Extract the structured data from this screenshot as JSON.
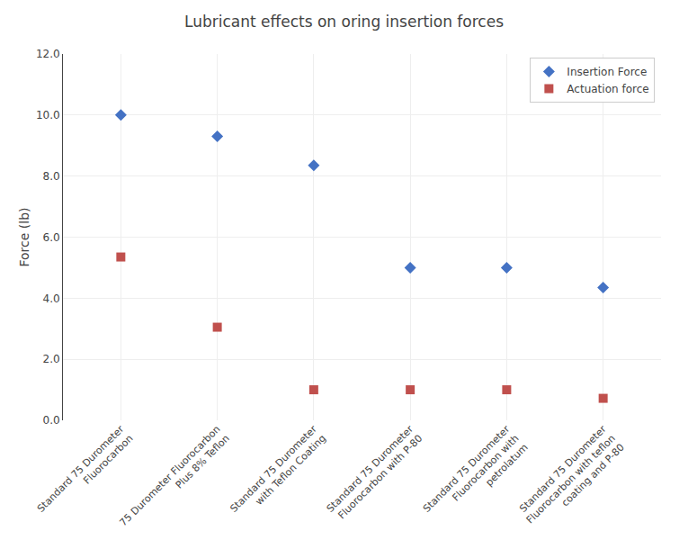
{
  "chart_data": {
    "type": "scatter",
    "title": "Lubricant effects on oring insertion forces",
    "ylabel": "Force (lb)",
    "categories": [
      "Standard 75 Durometer\nFluorocarbon",
      "75 Durometer Fluorocarbon\nPlus 8% Teflon",
      "Standard 75 Durometer\nwith Teflon Coating",
      "Standard 75 Durometer\nFluorocarbon with P-80",
      "Standard 75 Durometer\nFluorocarbon with\npetrolatum",
      "Standard 75 Durometer\nFluorocarbon with teflon\ncoating and P-80"
    ],
    "series": [
      {
        "name": "Insertion Force",
        "color": "#4472C4",
        "marker": "diamond",
        "values": [
          10.0,
          9.3,
          8.35,
          5.0,
          5.0,
          4.35
        ]
      },
      {
        "name": "Actuation force",
        "color": "#C0504D",
        "marker": "square",
        "values": [
          5.35,
          3.05,
          1.0,
          1.0,
          1.0,
          0.72
        ]
      }
    ],
    "ylim": [
      0.0,
      12.0
    ],
    "yticks": [
      {
        "value": 0,
        "label": "0.0"
      },
      {
        "value": 2,
        "label": "2.0"
      },
      {
        "value": 4,
        "label": "4.0"
      },
      {
        "value": 6,
        "label": "6.0"
      },
      {
        "value": 8,
        "label": "8.0"
      },
      {
        "value": 10,
        "label": "10.0"
      },
      {
        "value": 12,
        "label": "12.0"
      }
    ],
    "grid": true,
    "legend": "upper right"
  }
}
